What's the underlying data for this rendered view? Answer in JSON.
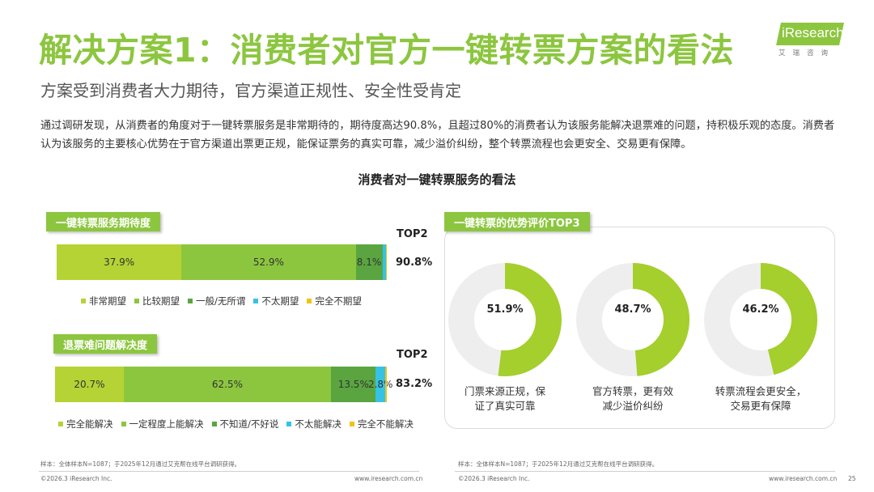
{
  "header": {
    "title": "解决方案1：消费者对官方一键转票方案的看法",
    "subtitle": "方案受到消费者大力期待，官方渠道正规性、安全性受肯定",
    "intro": "通过调研发现，从消费者的角度对于一键转票服务是非常期待的，期待度高达90.8%，且超过80%的消费者认为该服务能解决退票难的问题，持积极乐观的态度。消费者认为该服务的主要核心优势在于官方渠道出票更正规，能保证票务的真实可靠，减少溢价纠纷，整个转票流程也会更安全、交易更有保障。"
  },
  "logo": {
    "text": "iResearch",
    "cn": "艾瑞咨询"
  },
  "chart_data": [
    {
      "type": "bar",
      "orientation": "horizontal-stacked",
      "title": "消费者对一键转票服务的看法",
      "panel_label": "一键转票服务期待度",
      "series": [
        {
          "name": "非常期望",
          "value": 37.9,
          "label": "37.9%",
          "color": "#b5d334"
        },
        {
          "name": "比较期望",
          "value": 52.9,
          "label": "52.9%",
          "color": "#8cc63f"
        },
        {
          "name": "一般/无所谓",
          "value": 8.1,
          "label": "8.1%",
          "color": "#5aa540"
        },
        {
          "name": "不太期望",
          "value": 1.0,
          "label": "",
          "color": "#34c3e6"
        },
        {
          "name": "完全不期望",
          "value": 0.1,
          "label": "",
          "color": "#f2c311"
        }
      ],
      "top2_label": "TOP2",
      "top2_value": "90.8%"
    },
    {
      "type": "bar",
      "orientation": "horizontal-stacked",
      "panel_label": "退票难问题解决度",
      "series": [
        {
          "name": "完全能解决",
          "value": 20.7,
          "label": "20.7%",
          "color": "#b5d334"
        },
        {
          "name": "一定程度上能解决",
          "value": 62.5,
          "label": "62.5%",
          "color": "#8cc63f"
        },
        {
          "name": "不知道/不好说",
          "value": 13.5,
          "label": "13.5%",
          "color": "#5aa540"
        },
        {
          "name": "不太能解决",
          "value": 2.8,
          "label": "2.8%",
          "color": "#34c3e6"
        },
        {
          "name": "完全不能解决",
          "value": 0.5,
          "label": "",
          "color": "#f2c311"
        }
      ],
      "top2_label": "TOP2",
      "top2_value": "83.2%"
    },
    {
      "type": "pie",
      "variant": "donut",
      "panel_label": "一键转票的优势评价TOP3",
      "items": [
        {
          "value": 51.9,
          "label": "51.9%",
          "caption": [
            "门票来源正规，保",
            "证了真实可靠"
          ]
        },
        {
          "value": 48.7,
          "label": "48.7%",
          "caption": [
            "官方转票，更有效",
            "减少溢价纠纷"
          ]
        },
        {
          "value": 46.2,
          "label": "46.2%",
          "caption": [
            "转票流程会更安全，",
            "交易更有保障"
          ]
        }
      ],
      "color": "#a4cf2c",
      "track_color": "#eeeeee"
    }
  ],
  "footnotes": {
    "left": "样本：全体样本N=1087；于2025年12月通过艾克帮在线平台调研获得。",
    "right": "样本：全体样本N=1087；于2025年12月通过艾克帮在线平台调研获得。"
  },
  "footer": {
    "copyright_left": "©2026.3 iResearch Inc.",
    "url_left": "www.iresearch.com.cn",
    "copyright_right": "©2026.3 iResearch Inc.",
    "url_right": "www.iresearch.com.cn",
    "page": "25"
  }
}
